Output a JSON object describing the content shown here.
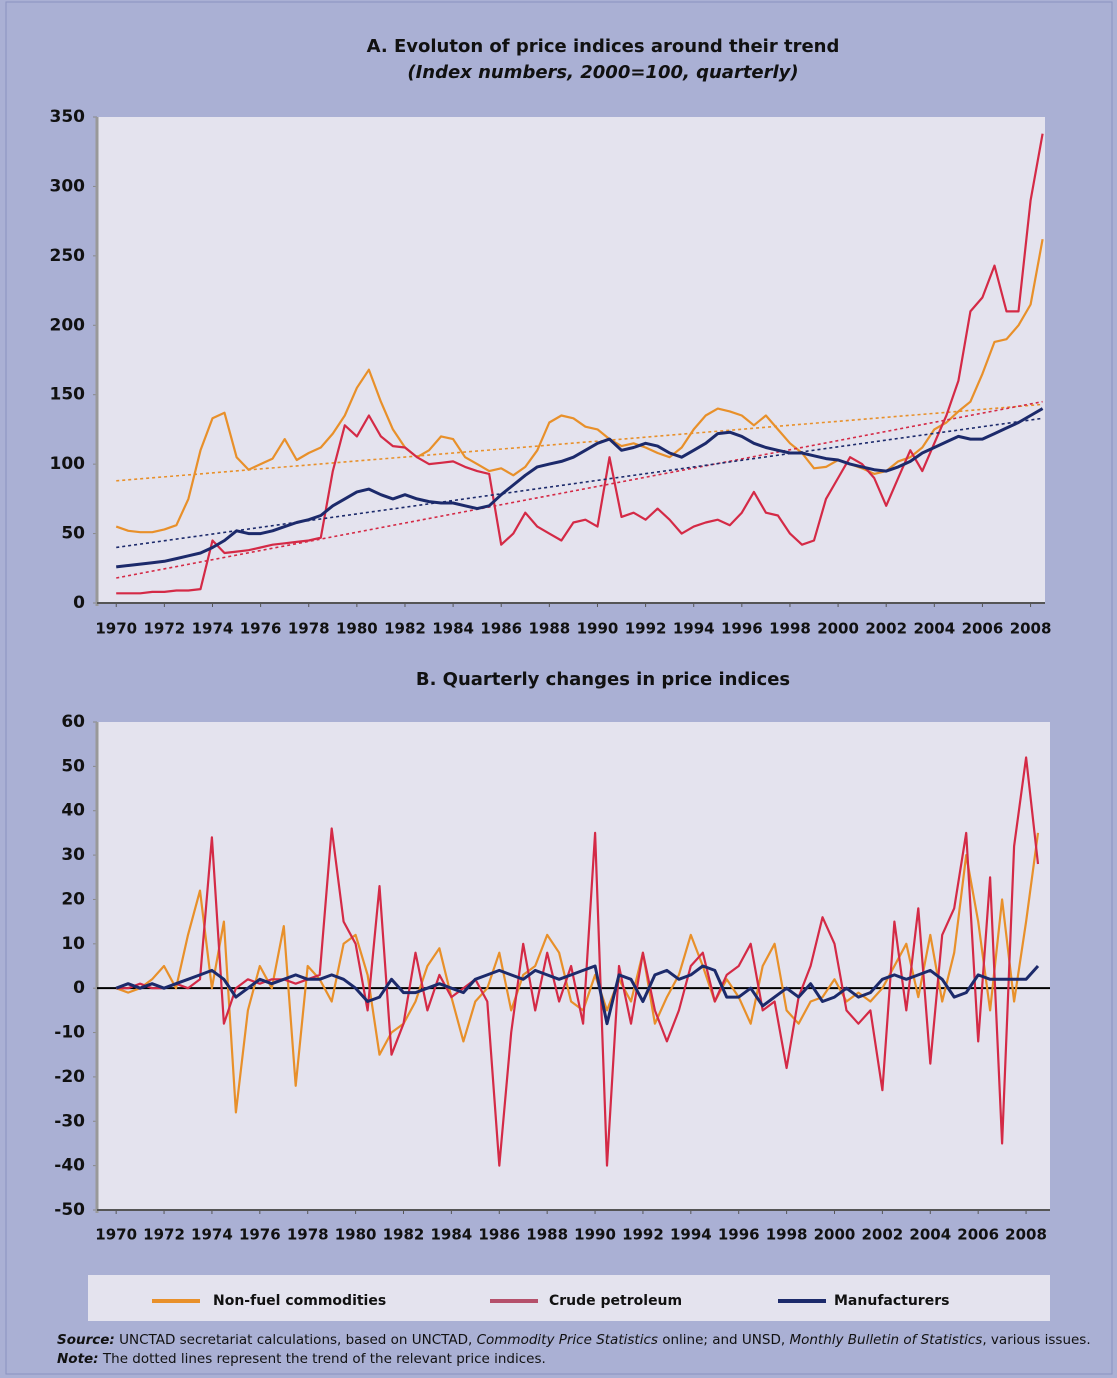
{
  "chart_data": [
    {
      "type": "line",
      "title": "A. Evoluton of price indices around their trend",
      "subtitle": "(Index numbers, 2000=100, quarterly)",
      "xlim": [
        1969.2,
        2008.6
      ],
      "xticks": [
        1970,
        1972,
        1974,
        1976,
        1978,
        1980,
        1982,
        1984,
        1986,
        1988,
        1990,
        1992,
        1994,
        1996,
        1998,
        2000,
        2002,
        2004,
        2006,
        2008
      ],
      "ylim": [
        0,
        350
      ],
      "yticks": [
        0,
        50,
        100,
        150,
        200,
        250,
        300,
        350
      ],
      "trend_x": [
        1970,
        2008.5
      ],
      "x": [
        1970,
        1970.5,
        1971,
        1971.5,
        1972,
        1972.5,
        1973,
        1973.5,
        1974,
        1974.5,
        1975,
        1975.5,
        1976,
        1976.5,
        1977,
        1977.5,
        1978,
        1978.5,
        1979,
        1979.5,
        1980,
        1980.5,
        1981,
        1981.5,
        1982,
        1982.5,
        1983,
        1983.5,
        1984,
        1984.5,
        1985,
        1985.5,
        1986,
        1986.5,
        1987,
        1987.5,
        1988,
        1988.5,
        1989,
        1989.5,
        1990,
        1990.5,
        1991,
        1991.5,
        1992,
        1992.5,
        1993,
        1993.5,
        1994,
        1994.5,
        1995,
        1995.5,
        1996,
        1996.5,
        1997,
        1997.5,
        1998,
        1998.5,
        1999,
        1999.5,
        2000,
        2000.5,
        2001,
        2001.5,
        2002,
        2002.5,
        2003,
        2003.5,
        2004,
        2004.5,
        2005,
        2005.5,
        2006,
        2006.5,
        2007,
        2007.5,
        2008,
        2008.5
      ],
      "series": [
        {
          "name": "Non-fuel commodities",
          "color": "#e8902a",
          "trend": [
            88,
            143
          ],
          "values": [
            55,
            52,
            51,
            51,
            53,
            56,
            75,
            110,
            133,
            137,
            105,
            96,
            100,
            104,
            118,
            103,
            108,
            112,
            122,
            135,
            155,
            168,
            145,
            125,
            112,
            105,
            110,
            120,
            118,
            105,
            100,
            95,
            97,
            92,
            98,
            110,
            130,
            135,
            133,
            127,
            125,
            118,
            113,
            115,
            112,
            108,
            105,
            112,
            125,
            135,
            140,
            138,
            135,
            128,
            135,
            125,
            115,
            108,
            97,
            98,
            103,
            100,
            97,
            93,
            95,
            102,
            105,
            112,
            125,
            130,
            138,
            145,
            165,
            188,
            190,
            200,
            215,
            262
          ]
        },
        {
          "name": "Crude petroleum",
          "color": "#d42a46",
          "legend_color": "#b5506b",
          "trend": [
            18,
            145
          ],
          "values": [
            7,
            7,
            7,
            8,
            8,
            9,
            9,
            10,
            45,
            36,
            37,
            38,
            40,
            42,
            43,
            44,
            45,
            47,
            95,
            128,
            120,
            135,
            120,
            113,
            112,
            105,
            100,
            101,
            102,
            98,
            95,
            93,
            42,
            50,
            65,
            55,
            50,
            45,
            58,
            60,
            55,
            105,
            62,
            65,
            60,
            68,
            60,
            50,
            55,
            58,
            60,
            56,
            65,
            80,
            65,
            63,
            50,
            42,
            45,
            75,
            90,
            105,
            100,
            90,
            70,
            90,
            110,
            95,
            115,
            135,
            160,
            210,
            220,
            243,
            210,
            210,
            290,
            338
          ]
        },
        {
          "name": "Manufacturers",
          "color": "#1c2a6b",
          "trend": [
            40,
            133
          ],
          "values": [
            26,
            27,
            28,
            29,
            30,
            32,
            34,
            36,
            40,
            45,
            52,
            50,
            50,
            52,
            55,
            58,
            60,
            63,
            70,
            75,
            80,
            82,
            78,
            75,
            78,
            75,
            73,
            72,
            72,
            70,
            68,
            70,
            78,
            85,
            92,
            98,
            100,
            102,
            105,
            110,
            115,
            118,
            110,
            112,
            115,
            113,
            108,
            105,
            110,
            115,
            122,
            123,
            120,
            115,
            112,
            110,
            108,
            108,
            106,
            104,
            103,
            100,
            98,
            96,
            95,
            98,
            102,
            108,
            112,
            116,
            120,
            118,
            118,
            122,
            126,
            130,
            135,
            140
          ]
        }
      ]
    },
    {
      "type": "line",
      "title": "B. Quarterly changes in price indices",
      "xlim": [
        1969.2,
        2009
      ],
      "xticks": [
        1970,
        1972,
        1974,
        1976,
        1978,
        1980,
        1982,
        1984,
        1986,
        1988,
        1990,
        1992,
        1994,
        1996,
        1998,
        2000,
        2002,
        2004,
        2006,
        2008
      ],
      "ylim": [
        -50,
        60
      ],
      "yticks": [
        -50,
        -40,
        -30,
        -20,
        -10,
        0,
        10,
        20,
        30,
        40,
        50,
        60
      ],
      "zero_line": true,
      "x": [
        1970,
        1970.5,
        1971,
        1971.5,
        1972,
        1972.5,
        1973,
        1973.5,
        1974,
        1974.5,
        1975,
        1975.5,
        1976,
        1976.5,
        1977,
        1977.5,
        1978,
        1978.5,
        1979,
        1979.5,
        1980,
        1980.5,
        1981,
        1981.5,
        1982,
        1982.5,
        1983,
        1983.5,
        1984,
        1984.5,
        1985,
        1985.5,
        1986,
        1986.5,
        1987,
        1987.5,
        1988,
        1988.5,
        1989,
        1989.5,
        1990,
        1990.5,
        1991,
        1991.5,
        1992,
        1992.5,
        1993,
        1993.5,
        1994,
        1994.5,
        1995,
        1995.5,
        1996,
        1996.5,
        1997,
        1997.5,
        1998,
        1998.5,
        1999,
        1999.5,
        2000,
        2000.5,
        2001,
        2001.5,
        2002,
        2002.5,
        2003,
        2003.5,
        2004,
        2004.5,
        2005,
        2005.5,
        2006,
        2006.5,
        2007,
        2007.5,
        2008,
        2008.5
      ],
      "series": [
        {
          "color": "#e8902a",
          "values": [
            0,
            -1,
            0,
            2,
            5,
            0,
            12,
            22,
            0,
            15,
            -28,
            -5,
            5,
            0,
            14,
            -22,
            5,
            2,
            -3,
            10,
            12,
            3,
            -15,
            -10,
            -8,
            -3,
            5,
            9,
            -2,
            -12,
            -3,
            0,
            8,
            -5,
            3,
            5,
            12,
            8,
            -3,
            -5,
            3,
            -5,
            2,
            -3,
            8,
            -8,
            -2,
            3,
            12,
            5,
            -3,
            2,
            -2,
            -8,
            5,
            10,
            -5,
            -8,
            -3,
            -2,
            2,
            -3,
            -1,
            -3,
            0,
            5,
            10,
            -2,
            12,
            -3,
            8,
            30,
            15,
            -5,
            20,
            -3,
            15,
            35
          ]
        },
        {
          "color": "#d42a46",
          "values": [
            0,
            0,
            1,
            0,
            0,
            1,
            0,
            2,
            34,
            -8,
            0,
            2,
            1,
            2,
            2,
            1,
            2,
            3,
            36,
            15,
            10,
            -5,
            23,
            -15,
            -8,
            8,
            -5,
            3,
            -2,
            0,
            2,
            -3,
            -40,
            -10,
            10,
            -5,
            8,
            -3,
            5,
            -8,
            35,
            -40,
            5,
            -8,
            8,
            -5,
            -12,
            -5,
            5,
            8,
            -3,
            3,
            5,
            10,
            -5,
            -3,
            -18,
            -2,
            5,
            16,
            10,
            -5,
            -8,
            -5,
            -23,
            15,
            -5,
            18,
            -17,
            12,
            18,
            35,
            -12,
            25,
            -35,
            32,
            52,
            28
          ]
        },
        {
          "color": "#1c2a6b",
          "values": [
            0,
            1,
            0,
            1,
            0,
            1,
            2,
            3,
            4,
            2,
            -2,
            0,
            2,
            1,
            2,
            3,
            2,
            2,
            3,
            2,
            0,
            -3,
            -2,
            2,
            -1,
            -1,
            0,
            1,
            0,
            -1,
            2,
            3,
            4,
            3,
            2,
            4,
            3,
            2,
            3,
            4,
            5,
            -8,
            3,
            2,
            -3,
            3,
            4,
            2,
            3,
            5,
            4,
            -2,
            -2,
            0,
            -4,
            -2,
            0,
            -2,
            1,
            -3,
            -2,
            0,
            -2,
            -1,
            2,
            3,
            2,
            3,
            4,
            2,
            -2,
            -1,
            3,
            2,
            2,
            2,
            2,
            5
          ]
        }
      ]
    }
  ],
  "notes": [
    [
      {
        "text": "Source:",
        "style": "bi"
      },
      {
        "text": " UNCTAD secretariat calculations, based on UNCTAD, "
      },
      {
        "text": "Commodity Price Statistics",
        "style": "i"
      },
      {
        "text": " online; and UNSD, "
      },
      {
        "text": "Monthly Bulletin of Statistics",
        "style": "i"
      },
      {
        "text": ", various issues."
      }
    ],
    [
      {
        "text": "Note:",
        "style": "bi"
      },
      {
        "text": " The dotted lines represent the trend of the relevant price indices."
      }
    ]
  ]
}
